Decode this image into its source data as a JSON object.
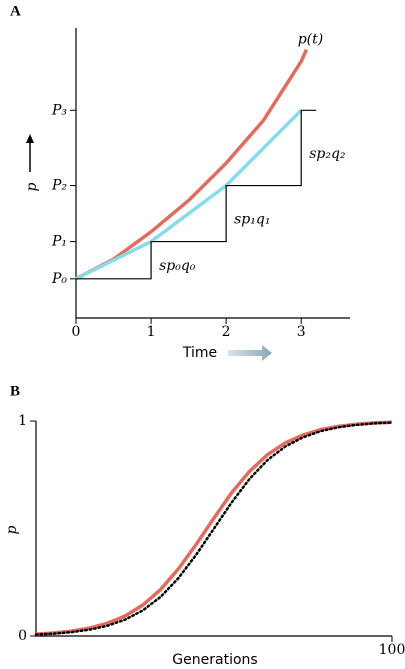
{
  "chart_data": [
    {
      "type": "line",
      "panel": "A",
      "x_label": "Time",
      "y_label": "p",
      "xlim": [
        0,
        3.65
      ],
      "xticks": [
        0,
        1,
        2,
        3
      ],
      "ylim": [
        0,
        7.4
      ],
      "yticks": [
        {
          "value": 1.0,
          "label": "P₀"
        },
        {
          "value": 1.95,
          "label": "P₁"
        },
        {
          "value": 3.38,
          "label": "P₂"
        },
        {
          "value": 5.3,
          "label": "P₃"
        }
      ],
      "series": [
        {
          "name": "p(t)",
          "color": "#e06b5f",
          "x": [
            0,
            0.5,
            1,
            1.5,
            2,
            2.5,
            3,
            3.07
          ],
          "values": [
            1.0,
            1.5,
            2.2,
            3.0,
            3.95,
            5.05,
            6.55,
            6.85
          ]
        },
        {
          "color": "#86dde8",
          "x": [
            0,
            1,
            2,
            3
          ],
          "values": [
            1.0,
            1.95,
            3.38,
            5.3
          ]
        },
        {
          "color": "#000000",
          "x": [
            0,
            1,
            1,
            2,
            2,
            3,
            3,
            3.2
          ],
          "values": [
            1.0,
            1.0,
            1.95,
            1.95,
            3.38,
            3.38,
            5.3,
            5.3
          ]
        }
      ],
      "step_labels": [
        "sp₀q₀",
        "sp₁q₁",
        "sp₂q₂"
      ]
    },
    {
      "type": "line",
      "panel": "B",
      "x_label": "Generations",
      "y_label": "p",
      "xlim": [
        0,
        100
      ],
      "xticks": [
        100
      ],
      "ylim": [
        0,
        1
      ],
      "yticks": [
        0,
        1
      ],
      "series": [
        {
          "color": "#e06b5f",
          "x": [
            0,
            5,
            10,
            15,
            20,
            25,
            30,
            35,
            40,
            45,
            50,
            55,
            60,
            65,
            70,
            75,
            80,
            85,
            90,
            95,
            100
          ],
          "values": [
            0.0086,
            0.014,
            0.0227,
            0.0367,
            0.0588,
            0.093,
            0.144,
            0.216,
            0.312,
            0.426,
            0.549,
            0.667,
            0.766,
            0.843,
            0.898,
            0.935,
            0.96,
            0.975,
            0.985,
            0.991,
            0.994
          ]
        },
        {
          "color": "#000000",
          "dash": "dotted",
          "x": [
            0,
            5,
            10,
            15,
            20,
            25,
            30,
            35,
            40,
            45,
            50,
            55,
            60,
            65,
            70,
            75,
            80,
            85,
            90,
            95,
            100
          ],
          "values": [
            0.0067,
            0.011,
            0.018,
            0.0293,
            0.0474,
            0.0759,
            0.119,
            0.182,
            0.269,
            0.378,
            0.5,
            0.622,
            0.731,
            0.818,
            0.881,
            0.924,
            0.953,
            0.971,
            0.982,
            0.989,
            0.993
          ]
        }
      ]
    }
  ]
}
